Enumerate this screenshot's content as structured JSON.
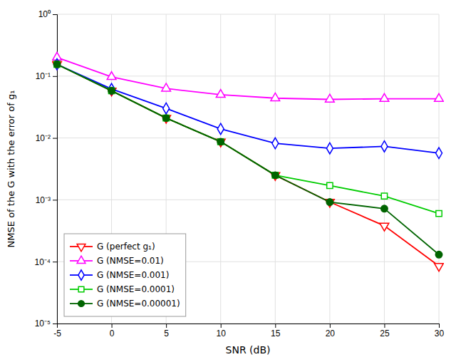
{
  "chart_data": {
    "type": "line",
    "xlabel": "SNR (dB)",
    "ylabel": "NMSE of the G with the error of g₁",
    "x": [
      -5,
      0,
      5,
      10,
      15,
      20,
      25,
      30
    ],
    "series": [
      {
        "name": "G (perfect g₁)",
        "color": "#ff0000",
        "marker": "triangle-down",
        "values": [
          0.155,
          0.058,
          0.021,
          0.0087,
          0.0025,
          0.00092,
          0.00038,
          8.5e-05
        ]
      },
      {
        "name": "G (NMSE=0.01)",
        "color": "#ff00ff",
        "marker": "triangle-up",
        "values": [
          0.2,
          0.097,
          0.063,
          0.05,
          0.044,
          0.042,
          0.043,
          0.043
        ]
      },
      {
        "name": "G (NMSE=0.001)",
        "color": "#0000ff",
        "marker": "diamond",
        "values": [
          0.155,
          0.062,
          0.03,
          0.014,
          0.0082,
          0.0068,
          0.0073,
          0.0057
        ]
      },
      {
        "name": "G (NMSE=0.0001)",
        "color": "#00cc00",
        "marker": "square",
        "values": [
          0.155,
          0.058,
          0.021,
          0.0087,
          0.0025,
          0.0017,
          0.00115,
          0.0006
        ]
      },
      {
        "name": "G (NMSE=0.00001)",
        "color": "#006400",
        "marker": "filled-circle",
        "values": [
          0.155,
          0.058,
          0.021,
          0.0087,
          0.0025,
          0.00092,
          0.00072,
          0.00013
        ]
      }
    ],
    "xlim": [
      -5,
      30
    ],
    "ylim": [
      1e-05,
      1
    ],
    "xticks": [
      -5,
      0,
      5,
      10,
      15,
      20,
      25,
      30
    ],
    "yticks": [
      {
        "value": 1e-05,
        "label": "10⁻⁵"
      },
      {
        "value": 0.0001,
        "label": "10⁻⁴"
      },
      {
        "value": 0.001,
        "label": "10⁻³"
      },
      {
        "value": 0.01,
        "label": "10⁻²"
      },
      {
        "value": 0.1,
        "label": "10⁻¹"
      },
      {
        "value": 1,
        "label": "10⁰"
      }
    ],
    "log": "y",
    "grid": true,
    "legend": "lower left"
  }
}
